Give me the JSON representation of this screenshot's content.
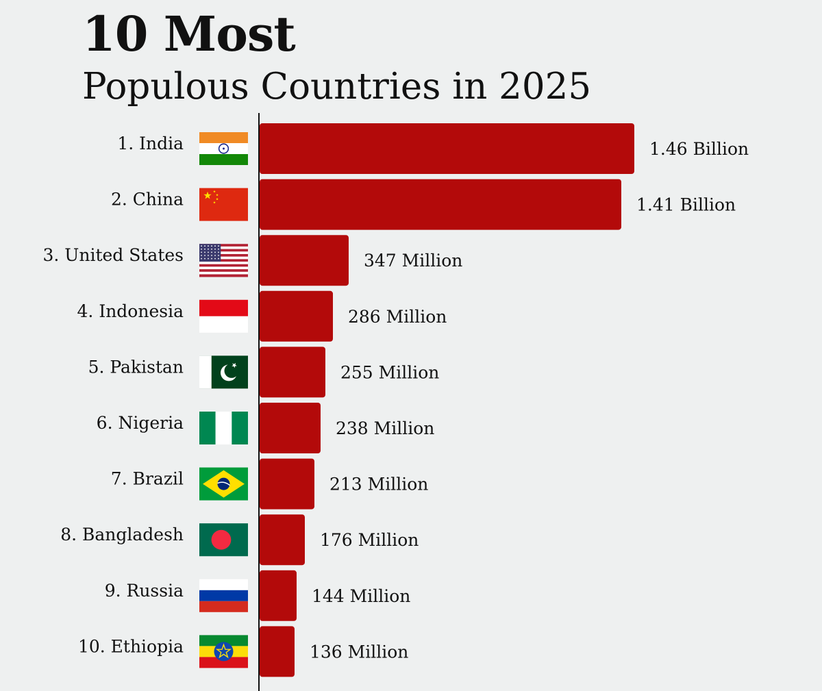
{
  "title": "10 Most",
  "subtitle": "Populous Countries in 2025",
  "colors": {
    "bar": "#b30a0a",
    "background": "#eef0f0",
    "axis": "#111111"
  },
  "chart_data": {
    "type": "bar",
    "orientation": "horizontal",
    "title": "10 Most",
    "subtitle": "Populous Countries in 2025",
    "categories": [
      "1. India",
      "2. China",
      "3. United States",
      "4. Indonesia",
      "5. Pakistan",
      "6. Nigeria",
      "7. Brazil",
      "8. Bangladesh",
      "9. Russia",
      "10. Ethiopia"
    ],
    "flags": [
      "india-flag-icon",
      "china-flag-icon",
      "united-states-flag-icon",
      "indonesia-flag-icon",
      "pakistan-flag-icon",
      "nigeria-flag-icon",
      "brazil-flag-icon",
      "bangladesh-flag-icon",
      "russia-flag-icon",
      "ethiopia-flag-icon"
    ],
    "values": [
      1460000000,
      1410000000,
      347000000,
      286000000,
      255000000,
      238000000,
      213000000,
      176000000,
      144000000,
      136000000
    ],
    "value_labels": [
      "1.46 Billion",
      "1.41 Billion",
      "347 Million",
      "286 Million",
      "255 Million",
      "238 Million",
      "213 Million",
      "176 Million",
      "144 Million",
      "136 Million"
    ],
    "grid": false,
    "legend": "none"
  }
}
